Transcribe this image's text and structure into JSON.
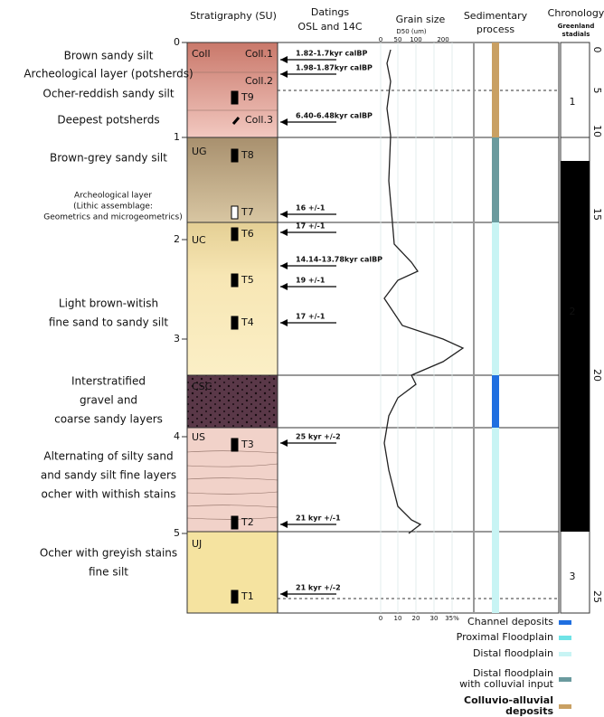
{
  "headers": {
    "stratigraphy": "Stratigraphy (SU)",
    "datings": [
      "Datings",
      "OSL and 14C"
    ],
    "grain_size": "Grain size",
    "grain_unit": "D50 (um)",
    "process": [
      "Sedimentary",
      "process"
    ],
    "chronology": "Chronology",
    "chronology_sub": [
      "Greenland",
      "stadials"
    ]
  },
  "depth_ticks": [
    "0",
    "1",
    "2",
    "3",
    "4",
    "5"
  ],
  "chronology_ticks": [
    "0",
    "5",
    "10",
    "15",
    "20",
    "25"
  ],
  "grain_ticks_top": [
    "0",
    "50",
    "100",
    "200"
  ],
  "grain_ticks_bottom": [
    "0",
    "10",
    "20",
    "30",
    "35%"
  ],
  "units": [
    "Coll",
    "UG",
    "UC",
    "CSC",
    "US",
    "UJ"
  ],
  "sublabels": [
    "Coll.1",
    "Coll.2",
    "Coll.3"
  ],
  "descriptions": [
    [
      "Brown sandy silt"
    ],
    [
      "Archeological layer (potsherds)"
    ],
    [
      "Ocher-reddish sandy silt"
    ],
    [
      "Deepest potsherds"
    ],
    [
      "Brown-grey sandy silt"
    ],
    [
      "Archeological layer",
      "(Lithic assemblage:",
      "Geometrics and microgeometrics)"
    ],
    [
      "Light brown-witish",
      "fine sand to sandy silt"
    ],
    [
      "Interstratified",
      "gravel and",
      "coarse sandy layers"
    ],
    [
      "Alternating of  silty sand",
      "and sandy silt fine layers",
      "ocher with withish stains"
    ],
    [
      "Ocher with greyish stains",
      "fine silt"
    ]
  ],
  "samples": [
    "T9",
    "T8",
    "T7",
    "T6",
    "T5",
    "T4",
    "T3",
    "T2",
    "T1"
  ],
  "datings": [
    "1.82-1.7kyr calBP",
    "1.98-1.87kyr calBP",
    "6.40-6.48kyr calBP",
    "16 +/-1",
    "17 +/-1",
    "14.14-13.78kyr calBP",
    "19 +/-1",
    "17 +/-1",
    "25 kyr +/-2",
    "21 kyr +/-1",
    "21 kyr +/-2"
  ],
  "stadials": [
    "1",
    "2",
    "3"
  ],
  "legend": [
    {
      "label": [
        "Channel deposits"
      ],
      "color": "#1f6fe0"
    },
    {
      "label": [
        "Proximal Floodplain"
      ],
      "color": "#6fe3e6"
    },
    {
      "label": [
        "Distal floodplain"
      ],
      "color": "#c8f4f4"
    },
    {
      "label": [
        "Distal floodplain",
        "with colluvial input"
      ],
      "color": "#6a9a9e"
    },
    {
      "label": [
        "Colluvio-alluvial",
        "deposits"
      ],
      "color": "#c9a063"
    }
  ]
}
